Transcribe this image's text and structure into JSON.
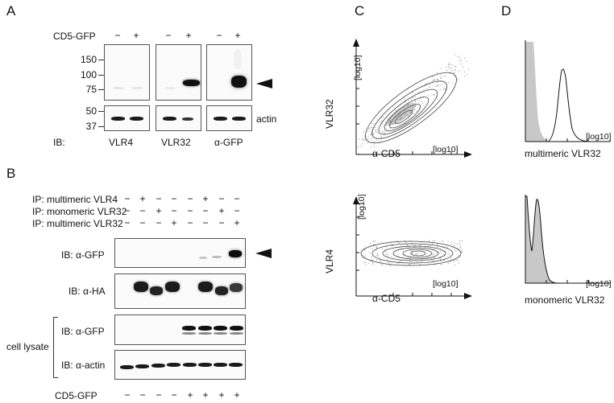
{
  "panels": {
    "a": "A",
    "b": "B",
    "c": "C",
    "d": "D"
  },
  "panelA": {
    "row_label": "CD5-GFP",
    "signs": [
      "−",
      "+",
      "−",
      "+",
      "−",
      "+"
    ],
    "mw_upper": [
      "150",
      "100",
      "75"
    ],
    "mw_lower": [
      "50",
      "37"
    ],
    "actin_label": "actin",
    "ib_prefix": "IB:",
    "ib_labels": [
      "VLR4",
      "VLR32",
      "α-GFP"
    ]
  },
  "panelB": {
    "ip_rows": [
      {
        "label": "IP: multimeric VLR4",
        "signs": [
          "−",
          "+",
          "−",
          "−",
          "−",
          "+",
          "−",
          "−"
        ]
      },
      {
        "label": "IP: monomeric VLR32",
        "signs": [
          "−",
          "−",
          "+",
          "−",
          "−",
          "−",
          "+",
          "−"
        ]
      },
      {
        "label": "IP: multimeric VLR32",
        "signs": [
          "−",
          "−",
          "−",
          "+",
          "−",
          "−",
          "−",
          "+"
        ]
      }
    ],
    "blot_labels": [
      "IB: α-GFP",
      "IB: α-HA",
      "IB: α-GFP",
      "IB: α-actin"
    ],
    "cell_lysate_label": "cell lysate",
    "cd5_label": "CD5-GFP",
    "cd5_signs": [
      "−",
      "−",
      "−",
      "−",
      "+",
      "+",
      "+",
      "+"
    ]
  },
  "panelC": {
    "top": {
      "ylabel": "VLR32",
      "xlabel": "α-CD5",
      "xtick": "[log10]",
      "ytick": "[log10]"
    },
    "bottom": {
      "ylabel": "VLR4",
      "xlabel": "α-CD5",
      "xtick": "[log10]",
      "ytick": "[log10]"
    }
  },
  "panelD": {
    "top": {
      "xlabel": "multimeric VLR32",
      "xtick": "[log10]"
    },
    "bottom": {
      "xlabel": "monomeric VLR32",
      "xtick": "[log10]"
    }
  }
}
